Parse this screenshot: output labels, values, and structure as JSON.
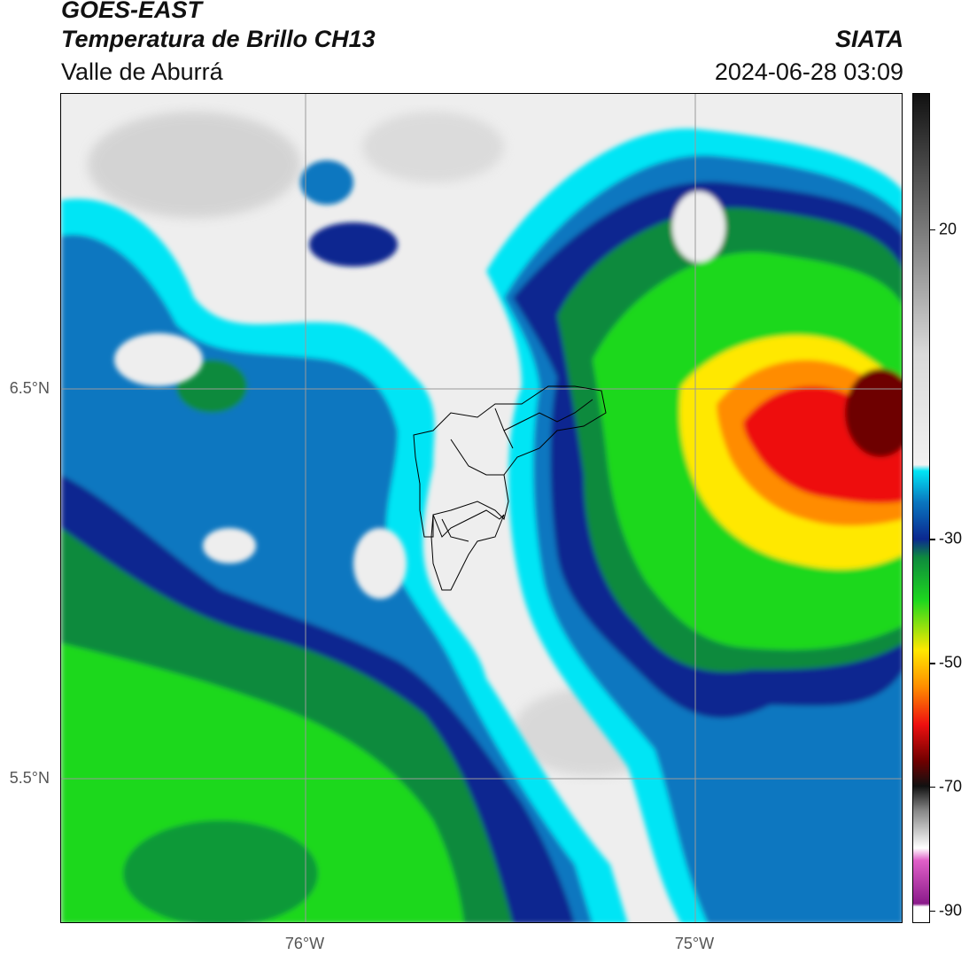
{
  "header": {
    "satellite": "GOES-EAST",
    "product": "Temperatura de Brillo CH13",
    "region": "Valle de Aburrá",
    "organization": "SIATA",
    "datetime": "2024-06-28 03:09"
  },
  "map": {
    "latitude_labels": [
      "6.5°N",
      "5.5°N"
    ],
    "longitude_labels": [
      "76°W",
      "75°W"
    ]
  },
  "colorbar": {
    "tick_labels": [
      "20",
      "-30",
      "-50",
      "-70",
      "-90"
    ],
    "tick_values": [
      20,
      -30,
      -50,
      -70,
      -90
    ],
    "range": [
      -92,
      42
    ]
  },
  "colors": {
    "clear_sky": "#eeeeee",
    "cyan": "#00e5f5",
    "blue": "#0a77c0",
    "navy": "#0b2890",
    "dark_green": "#0e8a3e",
    "green": "#1ed81e",
    "yellow": "#ffe800",
    "orange": "#ff8c00",
    "red": "#ee1010",
    "dark_red": "#6e0000",
    "magenta": "#e060c8"
  }
}
